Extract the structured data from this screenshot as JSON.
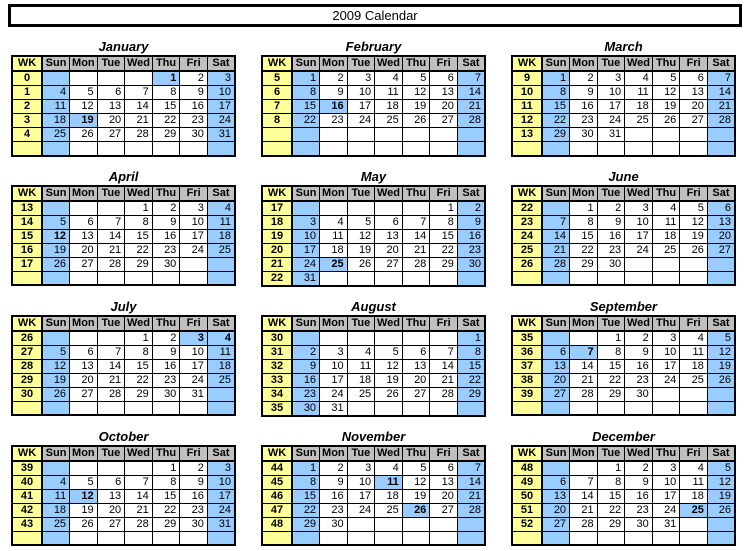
{
  "title": "2009 Calendar",
  "table": {
    "wk_header": "WK",
    "day_headers": [
      "Sun",
      "Mon",
      "Tue",
      "Wed",
      "Thu",
      "Fri",
      "Sat"
    ]
  },
  "colors": {
    "weekend_blue": "#99CCFF",
    "week_number_yellow": "#FFFF99",
    "header_gray": "#C0C0C0",
    "grid_black": "#000000"
  },
  "months": [
    {
      "name": "January",
      "holidays": [
        1,
        19
      ],
      "weeks": [
        {
          "wk": "0",
          "days": [
            "",
            "",
            "",
            "",
            "1",
            "2",
            "3"
          ]
        },
        {
          "wk": "1",
          "days": [
            "4",
            "5",
            "6",
            "7",
            "8",
            "9",
            "10"
          ]
        },
        {
          "wk": "2",
          "days": [
            "11",
            "12",
            "13",
            "14",
            "15",
            "16",
            "17"
          ]
        },
        {
          "wk": "3",
          "days": [
            "18",
            "19",
            "20",
            "21",
            "22",
            "23",
            "24"
          ]
        },
        {
          "wk": "4",
          "days": [
            "25",
            "26",
            "27",
            "28",
            "29",
            "30",
            "31"
          ]
        },
        {
          "wk": "",
          "days": [
            "",
            "",
            "",
            "",
            "",
            "",
            ""
          ]
        }
      ]
    },
    {
      "name": "February",
      "holidays": [
        16
      ],
      "weeks": [
        {
          "wk": "5",
          "days": [
            "1",
            "2",
            "3",
            "4",
            "5",
            "6",
            "7"
          ]
        },
        {
          "wk": "6",
          "days": [
            "8",
            "9",
            "10",
            "11",
            "12",
            "13",
            "14"
          ]
        },
        {
          "wk": "7",
          "days": [
            "15",
            "16",
            "17",
            "18",
            "19",
            "20",
            "21"
          ]
        },
        {
          "wk": "8",
          "days": [
            "22",
            "23",
            "24",
            "25",
            "26",
            "27",
            "28"
          ]
        },
        {
          "wk": "",
          "days": [
            "",
            "",
            "",
            "",
            "",
            "",
            ""
          ]
        },
        {
          "wk": "",
          "days": [
            "",
            "",
            "",
            "",
            "",
            "",
            ""
          ]
        }
      ]
    },
    {
      "name": "March",
      "holidays": [],
      "weeks": [
        {
          "wk": "9",
          "days": [
            "1",
            "2",
            "3",
            "4",
            "5",
            "6",
            "7"
          ]
        },
        {
          "wk": "10",
          "days": [
            "8",
            "9",
            "10",
            "11",
            "12",
            "13",
            "14"
          ]
        },
        {
          "wk": "11",
          "days": [
            "15",
            "16",
            "17",
            "18",
            "19",
            "20",
            "21"
          ]
        },
        {
          "wk": "12",
          "days": [
            "22",
            "23",
            "24",
            "25",
            "26",
            "27",
            "28"
          ]
        },
        {
          "wk": "13",
          "days": [
            "29",
            "30",
            "31",
            "",
            "",
            "",
            ""
          ]
        },
        {
          "wk": "",
          "days": [
            "",
            "",
            "",
            "",
            "",
            "",
            ""
          ]
        }
      ]
    },
    {
      "name": "April",
      "holidays": [
        12
      ],
      "weeks": [
        {
          "wk": "13",
          "days": [
            "",
            "",
            "",
            "1",
            "2",
            "3",
            "4"
          ]
        },
        {
          "wk": "14",
          "days": [
            "5",
            "6",
            "7",
            "8",
            "9",
            "10",
            "11"
          ]
        },
        {
          "wk": "15",
          "days": [
            "12",
            "13",
            "14",
            "15",
            "16",
            "17",
            "18"
          ]
        },
        {
          "wk": "16",
          "days": [
            "19",
            "20",
            "21",
            "22",
            "23",
            "24",
            "25"
          ]
        },
        {
          "wk": "17",
          "days": [
            "26",
            "27",
            "28",
            "29",
            "30",
            "",
            ""
          ]
        },
        {
          "wk": "",
          "days": [
            "",
            "",
            "",
            "",
            "",
            "",
            ""
          ]
        }
      ]
    },
    {
      "name": "May",
      "holidays": [
        25
      ],
      "weeks": [
        {
          "wk": "17",
          "days": [
            "",
            "",
            "",
            "",
            "",
            "1",
            "2"
          ]
        },
        {
          "wk": "18",
          "days": [
            "3",
            "4",
            "5",
            "6",
            "7",
            "8",
            "9"
          ]
        },
        {
          "wk": "19",
          "days": [
            "10",
            "11",
            "12",
            "13",
            "14",
            "15",
            "16"
          ]
        },
        {
          "wk": "20",
          "days": [
            "17",
            "18",
            "19",
            "20",
            "21",
            "22",
            "23"
          ]
        },
        {
          "wk": "21",
          "days": [
            "24",
            "25",
            "26",
            "27",
            "28",
            "29",
            "30"
          ]
        },
        {
          "wk": "22",
          "days": [
            "31",
            "",
            "",
            "",
            "",
            "",
            ""
          ]
        }
      ]
    },
    {
      "name": "June",
      "holidays": [],
      "weeks": [
        {
          "wk": "22",
          "days": [
            "",
            "1",
            "2",
            "3",
            "4",
            "5",
            "6"
          ]
        },
        {
          "wk": "23",
          "days": [
            "7",
            "8",
            "9",
            "10",
            "11",
            "12",
            "13"
          ]
        },
        {
          "wk": "24",
          "days": [
            "14",
            "15",
            "16",
            "17",
            "18",
            "19",
            "20"
          ]
        },
        {
          "wk": "25",
          "days": [
            "21",
            "22",
            "23",
            "24",
            "25",
            "26",
            "27"
          ]
        },
        {
          "wk": "26",
          "days": [
            "28",
            "29",
            "30",
            "",
            "",
            "",
            ""
          ]
        },
        {
          "wk": "",
          "days": [
            "",
            "",
            "",
            "",
            "",
            "",
            ""
          ]
        }
      ]
    },
    {
      "name": "July",
      "holidays": [
        3,
        4
      ],
      "weeks": [
        {
          "wk": "26",
          "days": [
            "",
            "",
            "",
            "1",
            "2",
            "3",
            "4"
          ]
        },
        {
          "wk": "27",
          "days": [
            "5",
            "6",
            "7",
            "8",
            "9",
            "10",
            "11"
          ]
        },
        {
          "wk": "28",
          "days": [
            "12",
            "13",
            "14",
            "15",
            "16",
            "17",
            "18"
          ]
        },
        {
          "wk": "29",
          "days": [
            "19",
            "20",
            "21",
            "22",
            "23",
            "24",
            "25"
          ]
        },
        {
          "wk": "30",
          "days": [
            "26",
            "27",
            "28",
            "29",
            "30",
            "31",
            ""
          ]
        },
        {
          "wk": "",
          "days": [
            "",
            "",
            "",
            "",
            "",
            "",
            ""
          ]
        }
      ]
    },
    {
      "name": "August",
      "holidays": [],
      "weeks": [
        {
          "wk": "30",
          "days": [
            "",
            "",
            "",
            "",
            "",
            "",
            "1"
          ]
        },
        {
          "wk": "31",
          "days": [
            "2",
            "3",
            "4",
            "5",
            "6",
            "7",
            "8"
          ]
        },
        {
          "wk": "32",
          "days": [
            "9",
            "10",
            "11",
            "12",
            "13",
            "14",
            "15"
          ]
        },
        {
          "wk": "33",
          "days": [
            "16",
            "17",
            "18",
            "19",
            "20",
            "21",
            "22"
          ]
        },
        {
          "wk": "34",
          "days": [
            "23",
            "24",
            "25",
            "26",
            "27",
            "28",
            "29"
          ]
        },
        {
          "wk": "35",
          "days": [
            "30",
            "31",
            "",
            "",
            "",
            "",
            ""
          ]
        }
      ]
    },
    {
      "name": "September",
      "holidays": [
        7
      ],
      "weeks": [
        {
          "wk": "35",
          "days": [
            "",
            "",
            "1",
            "2",
            "3",
            "4",
            "5"
          ]
        },
        {
          "wk": "36",
          "days": [
            "6",
            "7",
            "8",
            "9",
            "10",
            "11",
            "12"
          ]
        },
        {
          "wk": "37",
          "days": [
            "13",
            "14",
            "15",
            "16",
            "17",
            "18",
            "19"
          ]
        },
        {
          "wk": "38",
          "days": [
            "20",
            "21",
            "22",
            "23",
            "24",
            "25",
            "26"
          ]
        },
        {
          "wk": "39",
          "days": [
            "27",
            "28",
            "29",
            "30",
            "",
            "",
            ""
          ]
        },
        {
          "wk": "",
          "days": [
            "",
            "",
            "",
            "",
            "",
            "",
            ""
          ]
        }
      ]
    },
    {
      "name": "October",
      "holidays": [
        12
      ],
      "weeks": [
        {
          "wk": "39",
          "days": [
            "",
            "",
            "",
            "",
            "1",
            "2",
            "3"
          ]
        },
        {
          "wk": "40",
          "days": [
            "4",
            "5",
            "6",
            "7",
            "8",
            "9",
            "10"
          ]
        },
        {
          "wk": "41",
          "days": [
            "11",
            "12",
            "13",
            "14",
            "15",
            "16",
            "17"
          ]
        },
        {
          "wk": "42",
          "days": [
            "18",
            "19",
            "20",
            "21",
            "22",
            "23",
            "24"
          ]
        },
        {
          "wk": "43",
          "days": [
            "25",
            "26",
            "27",
            "28",
            "29",
            "30",
            "31"
          ]
        },
        {
          "wk": "",
          "days": [
            "",
            "",
            "",
            "",
            "",
            "",
            ""
          ]
        }
      ]
    },
    {
      "name": "November",
      "holidays": [
        11,
        26
      ],
      "weeks": [
        {
          "wk": "44",
          "days": [
            "1",
            "2",
            "3",
            "4",
            "5",
            "6",
            "7"
          ]
        },
        {
          "wk": "45",
          "days": [
            "8",
            "9",
            "10",
            "11",
            "12",
            "13",
            "14"
          ]
        },
        {
          "wk": "46",
          "days": [
            "15",
            "16",
            "17",
            "18",
            "19",
            "20",
            "21"
          ]
        },
        {
          "wk": "47",
          "days": [
            "22",
            "23",
            "24",
            "25",
            "26",
            "27",
            "28"
          ]
        },
        {
          "wk": "48",
          "days": [
            "29",
            "30",
            "",
            "",
            "",
            "",
            ""
          ]
        },
        {
          "wk": "",
          "days": [
            "",
            "",
            "",
            "",
            "",
            "",
            ""
          ]
        }
      ]
    },
    {
      "name": "December",
      "holidays": [
        25
      ],
      "weeks": [
        {
          "wk": "48",
          "days": [
            "",
            "",
            "1",
            "2",
            "3",
            "4",
            "5"
          ]
        },
        {
          "wk": "49",
          "days": [
            "6",
            "7",
            "8",
            "9",
            "10",
            "11",
            "12"
          ]
        },
        {
          "wk": "50",
          "days": [
            "13",
            "14",
            "15",
            "16",
            "17",
            "18",
            "19"
          ]
        },
        {
          "wk": "51",
          "days": [
            "20",
            "21",
            "22",
            "23",
            "24",
            "25",
            "26"
          ]
        },
        {
          "wk": "52",
          "days": [
            "27",
            "28",
            "29",
            "30",
            "31",
            "",
            ""
          ]
        },
        {
          "wk": "",
          "days": [
            "",
            "",
            "",
            "",
            "",
            "",
            ""
          ]
        }
      ]
    }
  ]
}
